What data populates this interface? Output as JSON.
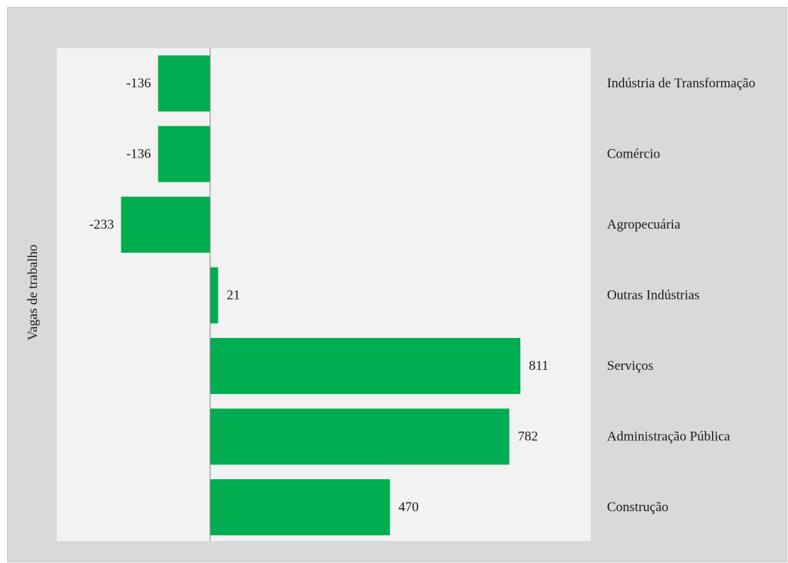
{
  "chart_data": {
    "type": "bar",
    "orientation": "horizontal",
    "ylabel": "Vagas de trabalho",
    "xlabel": "",
    "categories": [
      "Indústria de Transformação",
      "Comércio",
      "Agropecuária",
      "Outras Indústrias",
      "Serviços",
      "Administração Pública",
      "Construção"
    ],
    "values": [
      -136,
      -136,
      -233,
      21,
      811,
      782,
      470
    ],
    "data_labels": [
      "-136",
      "-136",
      "-233",
      "21",
      "811",
      "782",
      "470"
    ],
    "xlim": [
      -400,
      1000
    ],
    "grid": false,
    "legend": "none",
    "colors": {
      "bar": "#00ad50",
      "plot_area": "#f2f2f2",
      "chart_area": "#d9d9d9",
      "axis_line": "#808080",
      "text": "#1a1a1a"
    }
  }
}
